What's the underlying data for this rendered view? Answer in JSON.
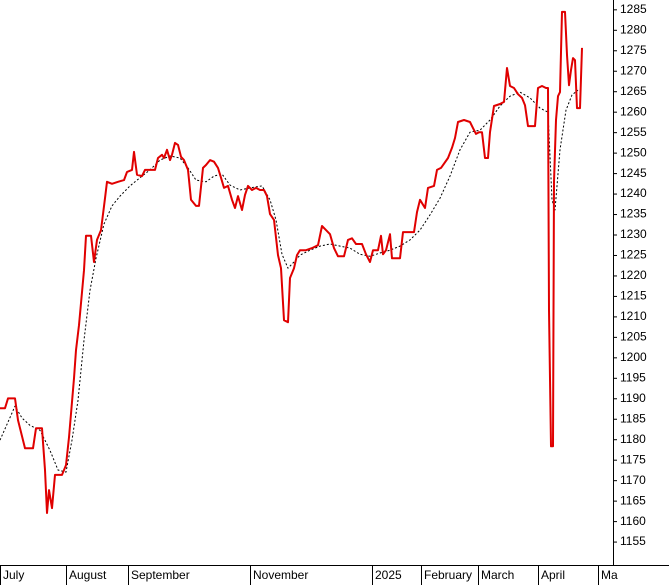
{
  "chart_data": {
    "type": "line",
    "xlim": [
      0,
      613
    ],
    "xticks": [
      {
        "value": 0,
        "label": "July"
      },
      {
        "value": 66,
        "label": "August"
      },
      {
        "value": 128,
        "label": "September"
      },
      {
        "value": 250,
        "label": "November"
      },
      {
        "value": 372,
        "label": "2025"
      },
      {
        "value": 421,
        "label": "February"
      },
      {
        "value": 478,
        "label": "March"
      },
      {
        "value": 538,
        "label": "April"
      },
      {
        "value": 598,
        "label": "Ma"
      }
    ],
    "ylim": [
      1149.4,
      1287.4
    ],
    "yticks": [
      1155,
      1160,
      1165,
      1170,
      1175,
      1180,
      1185,
      1190,
      1195,
      1200,
      1205,
      1210,
      1215,
      1220,
      1225,
      1230,
      1235,
      1240,
      1245,
      1250,
      1255,
      1260,
      1265,
      1270,
      1275,
      1280,
      1285
    ],
    "y_axis_side": "right",
    "series": [
      {
        "color": "#e00000",
        "line_style": "solid",
        "x": [
          0,
          5,
          8,
          15,
          18,
          25,
          33,
          36,
          42,
          45,
          47,
          49,
          52,
          55,
          62,
          66,
          69,
          74,
          76,
          79,
          84,
          86,
          91,
          94,
          97,
          101,
          105,
          107,
          112,
          118,
          124,
          127,
          132,
          134,
          137,
          142,
          145,
          150,
          155,
          158,
          162,
          164,
          167,
          170,
          172,
          175,
          178,
          181,
          184,
          188,
          191,
          196,
          199,
          203,
          206,
          210,
          214,
          218,
          221,
          224,
          228,
          232,
          235,
          238,
          242,
          245,
          248,
          252,
          256,
          260,
          264,
          267,
          270,
          274,
          278,
          281,
          284,
          288,
          290,
          294,
          297,
          300,
          306,
          312,
          318,
          322,
          326,
          330,
          334,
          338,
          344,
          348,
          352,
          356,
          362,
          366,
          370,
          373,
          378,
          381,
          383,
          386,
          390,
          392,
          396,
          400,
          403,
          410,
          414,
          417,
          420,
          425,
          428,
          434,
          437,
          441,
          448,
          452,
          455,
          458,
          464,
          470,
          473,
          476,
          479,
          482,
          485,
          488,
          490,
          494,
          500,
          504,
          507,
          510,
          514,
          518,
          522,
          525,
          528,
          532,
          535,
          538,
          542,
          546,
          548,
          549,
          551,
          553,
          554,
          556,
          558,
          560,
          562,
          565,
          567,
          569,
          571,
          573,
          575,
          577,
          580,
          582
        ],
        "values": [
          1187.7,
          1187.7,
          1190.1,
          1190.1,
          1184.8,
          1177.9,
          1177.9,
          1182.8,
          1182.8,
          1172.6,
          1162.1,
          1167.7,
          1163.3,
          1171.4,
          1171.4,
          1173.8,
          1180.6,
          1195.0,
          1201.9,
          1208.0,
          1221.4,
          1229.8,
          1229.8,
          1223.4,
          1228.8,
          1231.2,
          1239.0,
          1243.0,
          1242.5,
          1243.0,
          1243.4,
          1245.4,
          1245.9,
          1250.3,
          1244.7,
          1244.4,
          1245.9,
          1245.9,
          1245.9,
          1248.8,
          1249.6,
          1248.8,
          1250.8,
          1248.3,
          1249.6,
          1252.5,
          1252.0,
          1249.1,
          1248.3,
          1245.9,
          1238.6,
          1237.1,
          1237.1,
          1246.4,
          1247.1,
          1248.3,
          1247.9,
          1246.4,
          1244.0,
          1241.5,
          1242.0,
          1238.6,
          1236.6,
          1239.5,
          1236.1,
          1239.8,
          1242.0,
          1241.0,
          1241.5,
          1241.0,
          1241.0,
          1239.5,
          1235.1,
          1233.7,
          1225.1,
          1221.9,
          1209.2,
          1208.7,
          1219.5,
          1221.9,
          1225.1,
          1226.3,
          1226.3,
          1226.8,
          1227.5,
          1232.2,
          1231.2,
          1230.2,
          1226.8,
          1224.8,
          1224.8,
          1228.8,
          1229.2,
          1227.8,
          1227.8,
          1225.3,
          1223.4,
          1226.3,
          1226.3,
          1229.8,
          1225.3,
          1226.3,
          1230.2,
          1224.3,
          1224.3,
          1224.3,
          1230.7,
          1230.7,
          1230.7,
          1235.6,
          1238.6,
          1236.6,
          1241.5,
          1242.0,
          1245.9,
          1246.4,
          1248.8,
          1251.3,
          1253.7,
          1257.6,
          1258.1,
          1257.6,
          1256.1,
          1254.7,
          1255.1,
          1255.1,
          1248.8,
          1248.8,
          1255.1,
          1261.5,
          1262.0,
          1262.5,
          1270.8,
          1266.4,
          1265.9,
          1264.4,
          1263.5,
          1261.7,
          1256.6,
          1256.6,
          1256.6,
          1265.9,
          1266.4,
          1265.9,
          1265.9,
          1211.6,
          1178.4,
          1178.4,
          1243.0,
          1258.1,
          1263.9,
          1264.9,
          1284.5,
          1284.5,
          1274.0,
          1266.6,
          1270.3,
          1273.2,
          1272.7,
          1261.0,
          1261.0,
          1275.7
        ]
      },
      {
        "color": "#000000",
        "line_style": "dotted",
        "x": [
          0,
          8,
          15,
          22,
          30,
          40,
          50,
          58,
          66,
          72,
          78,
          84,
          90,
          96,
          104,
          112,
          120,
          130,
          140,
          150,
          160,
          170,
          180,
          188,
          196,
          206,
          214,
          222,
          230,
          240,
          250,
          262,
          270,
          276,
          282,
          288,
          294,
          300,
          310,
          320,
          330,
          340,
          350,
          360,
          370,
          380,
          390,
          400,
          410,
          420,
          430,
          440,
          450,
          460,
          470,
          480,
          490,
          500,
          510,
          520,
          530,
          540,
          548,
          552,
          555,
          560,
          566,
          572,
          578
        ],
        "values": [
          1179.9,
          1184.3,
          1188.2,
          1185.3,
          1183.5,
          1182.3,
          1177.4,
          1172.6,
          1172.1,
          1179.9,
          1189.6,
          1204.3,
          1216.5,
          1224.3,
          1232.7,
          1237.1,
          1239.5,
          1242.0,
          1244.0,
          1245.9,
          1248.3,
          1249.3,
          1248.8,
          1246.4,
          1243.4,
          1243.0,
          1244.4,
          1244.9,
          1242.2,
          1241.0,
          1241.5,
          1242.0,
          1238.6,
          1233.7,
          1225.3,
          1221.9,
          1223.4,
          1225.1,
          1226.3,
          1227.3,
          1227.8,
          1227.3,
          1226.8,
          1225.3,
          1224.8,
          1225.6,
          1226.3,
          1227.3,
          1228.8,
          1231.2,
          1234.9,
          1239.0,
          1244.4,
          1250.8,
          1255.1,
          1255.6,
          1258.1,
          1261.5,
          1263.9,
          1264.9,
          1263.5,
          1261.0,
          1260.0,
          1238.6,
          1236.1,
          1250.8,
          1260.5,
          1264.2,
          1265.4
        ]
      }
    ]
  }
}
